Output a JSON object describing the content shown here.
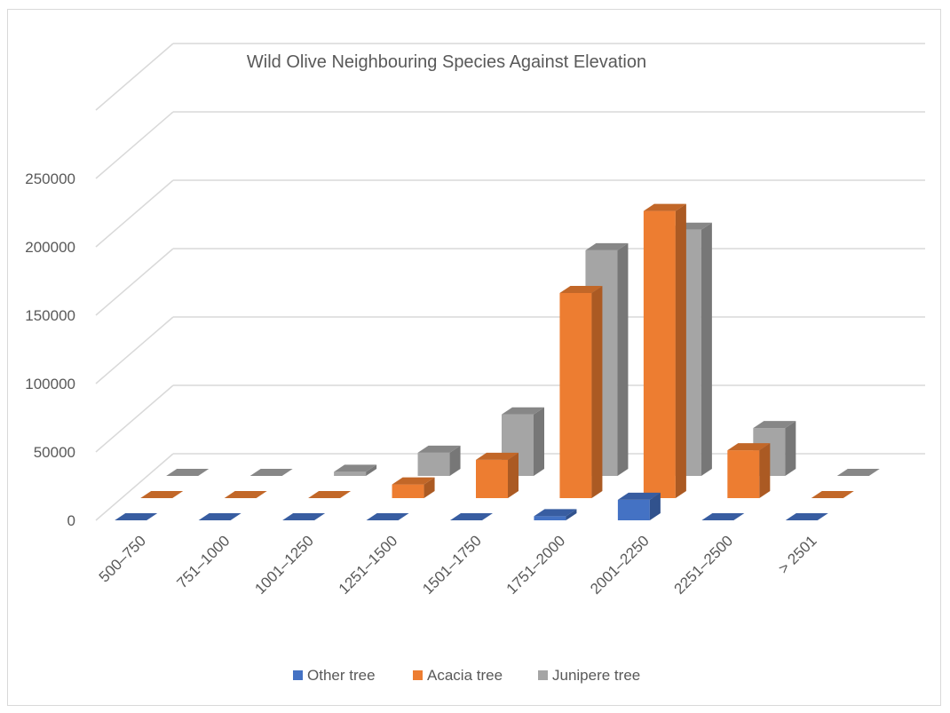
{
  "chart_data": {
    "type": "bar",
    "subtype": "3d-clustered-column",
    "title": "Wild Olive Neighbouring Species Against Elevation",
    "xlabel": "",
    "ylabel": "",
    "categories": [
      "500–750",
      "751–1000",
      "1001–1250",
      "1251–1500",
      "1501–1750",
      "1751–2000",
      "2001–2250",
      "2251–2500",
      "> 2501"
    ],
    "series": [
      {
        "name": "Other tree",
        "color": "#4472c4",
        "values": [
          0,
          0,
          0,
          0,
          0,
          3000,
          15000,
          0,
          0
        ]
      },
      {
        "name": "Acacia tree",
        "color": "#ed7d31",
        "values": [
          0,
          0,
          0,
          10000,
          28000,
          150000,
          210000,
          35000,
          0
        ]
      },
      {
        "name": "Junipere tree",
        "color": "#a5a5a5",
        "values": [
          0,
          0,
          3000,
          17000,
          45000,
          165000,
          180000,
          35000,
          0
        ]
      }
    ],
    "yticks": [
      0,
      50000,
      100000,
      150000,
      200000,
      250000
    ],
    "ylim": [
      0,
      250000
    ],
    "grid": true,
    "legend_position": "bottom"
  }
}
